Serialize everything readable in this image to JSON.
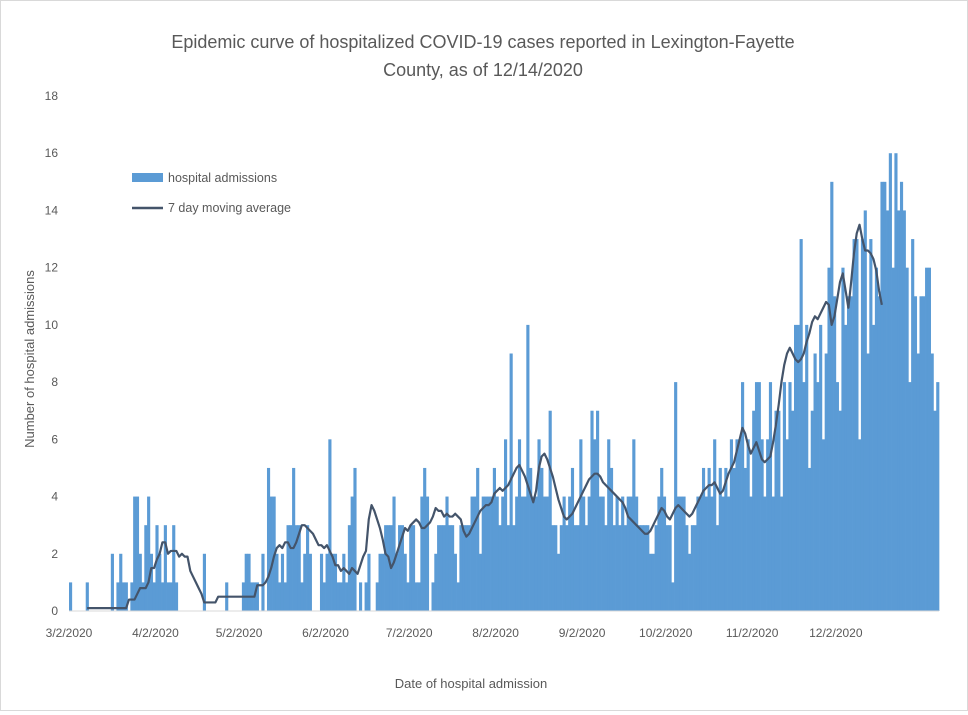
{
  "chart_data": {
    "type": "bar",
    "title_line1": "Epidemic curve of hospitalized COVID-19 cases reported in Lexington-Fayette",
    "title_line2": "County, as of 12/14/2020",
    "xlabel": "Date of hospital admission",
    "ylabel": "Number of hospital admissions",
    "ylim": [
      0,
      18
    ],
    "y_ticks": [
      "0",
      "2",
      "4",
      "6",
      "8",
      "10",
      "12",
      "14",
      "16",
      "18"
    ],
    "x_ticks": [
      {
        "label": "3/2/2020",
        "day": 0
      },
      {
        "label": "4/2/2020",
        "day": 31
      },
      {
        "label": "5/2/2020",
        "day": 61
      },
      {
        "label": "6/2/2020",
        "day": 92
      },
      {
        "label": "7/2/2020",
        "day": 122
      },
      {
        "label": "8/2/2020",
        "day": 153
      },
      {
        "label": "9/2/2020",
        "day": 184
      },
      {
        "label": "10/2/2020",
        "day": 214
      },
      {
        "label": "11/2/2020",
        "day": 245
      },
      {
        "label": "12/2/2020",
        "day": 275
      }
    ],
    "x_start": "3/2/2020",
    "x_end": "12/14/2020",
    "legend": {
      "placement": "top-left",
      "bar_label": "hospital admissions",
      "line_label": "7 day moving average"
    },
    "grid": false,
    "colors": {
      "bar": "#5b9bd5",
      "line": "#44546a"
    },
    "series": [
      {
        "name": "hospital admissions",
        "type": "bar",
        "values": [
          1,
          0,
          0,
          0,
          0,
          0,
          1,
          0,
          0,
          0,
          0,
          0,
          0,
          0,
          0,
          2,
          0,
          1,
          2,
          1,
          1,
          0,
          1,
          4,
          4,
          2,
          1,
          3,
          4,
          2,
          1,
          3,
          2,
          1,
          3,
          1,
          1,
          3,
          1,
          0,
          0,
          0,
          0,
          0,
          0,
          0,
          0,
          0,
          2,
          0,
          0,
          0,
          0,
          0,
          0,
          0,
          1,
          0,
          0,
          0,
          0,
          0,
          1,
          2,
          2,
          1,
          1,
          1,
          0,
          2,
          0,
          5,
          4,
          4,
          2,
          1,
          2,
          1,
          3,
          3,
          5,
          3,
          3,
          1,
          2,
          3,
          2,
          0,
          0,
          0,
          2,
          1,
          2,
          6,
          2,
          2,
          1,
          1,
          2,
          1,
          3,
          4,
          5,
          0,
          1,
          0,
          1,
          2,
          0,
          0,
          1,
          2,
          2,
          3,
          3,
          3,
          4,
          2,
          3,
          3,
          2,
          1,
          3,
          3,
          1,
          1,
          4,
          5,
          4,
          0,
          1,
          2,
          3,
          3,
          3,
          4,
          3,
          3,
          2,
          1,
          3,
          3,
          3,
          3,
          4,
          4,
          5,
          2,
          4,
          4,
          4,
          4,
          5,
          4,
          3,
          4,
          6,
          3,
          9,
          3,
          4,
          6,
          4,
          4,
          10,
          5,
          4,
          4,
          6,
          5,
          4,
          4,
          7,
          3,
          3,
          2,
          3,
          4,
          3,
          4,
          5,
          3,
          3,
          6,
          4,
          3,
          4,
          7,
          6,
          7,
          4,
          4,
          3,
          6,
          5,
          3,
          4,
          3,
          4,
          3,
          4,
          4,
          6,
          4,
          3,
          3,
          3,
          3,
          2,
          2,
          3,
          4,
          5,
          4,
          3,
          3,
          1,
          8,
          4,
          4,
          4,
          3,
          2,
          3,
          3,
          4,
          4,
          5,
          4,
          5,
          4,
          6,
          3,
          5,
          4,
          5,
          4,
          6,
          5,
          6,
          6,
          8,
          5,
          6,
          4,
          7,
          8,
          8,
          6,
          4,
          6,
          8,
          4,
          7,
          7,
          4,
          8,
          6,
          8,
          7,
          10,
          10,
          13,
          8,
          10,
          5,
          7,
          9,
          8,
          10,
          6,
          9,
          12,
          15,
          11,
          8,
          7,
          12,
          10,
          11,
          11,
          13,
          13,
          6,
          13,
          14,
          9,
          13,
          10,
          12,
          11,
          15,
          15,
          14,
          16,
          12,
          16,
          14,
          15,
          14,
          12,
          8,
          13,
          11,
          9,
          11,
          11,
          12,
          12,
          9,
          7,
          8
        ]
      },
      {
        "name": "7 day moving average",
        "type": "line",
        "values": [
          0.1,
          0.1,
          0.1,
          0.1,
          0.1,
          0.1,
          0.1,
          0.1,
          0.1,
          0.1,
          0.1,
          0.1,
          0.1,
          0.1,
          0.1,
          0.4,
          0.4,
          0.4,
          0.6,
          0.8,
          0.8,
          0.8,
          1.0,
          1.5,
          1.5,
          1.8,
          2.0,
          2.4,
          2.4,
          2.0,
          2.1,
          2.1,
          2.1,
          1.9,
          2.0,
          1.9,
          1.9,
          1.4,
          1.2,
          1.0,
          0.8,
          0.6,
          0.3,
          0.3,
          0.3,
          0.3,
          0.3,
          0.5,
          0.5,
          0.5,
          0.5,
          0.5,
          0.5,
          0.5,
          0.5,
          0.5,
          0.5,
          0.5,
          0.5,
          0.5,
          0.5,
          0.9,
          0.9,
          0.9,
          1.0,
          1.2,
          1.5,
          1.9,
          2.2,
          2.3,
          2.2,
          2.4,
          2.4,
          2.2,
          2.2,
          2.4,
          2.7,
          3.0,
          3.0,
          2.9,
          2.8,
          2.7,
          2.5,
          2.3,
          2.3,
          2.2,
          2.3,
          2.1,
          1.9,
          1.6,
          1.6,
          1.4,
          1.5,
          1.4,
          1.3,
          1.5,
          1.4,
          1.3,
          1.6,
          1.9,
          2.1,
          3.2,
          3.7,
          3.5,
          3.2,
          2.9,
          2.5,
          2.0,
          1.9,
          1.5,
          1.7,
          2.0,
          2.3,
          2.6,
          2.9,
          2.8,
          3.0,
          3.1,
          3.2,
          3.1,
          2.9,
          2.9,
          3.0,
          3.1,
          3.3,
          3.6,
          3.5,
          3.5,
          3.3,
          3.4,
          3.3,
          3.3,
          3.4,
          3.3,
          3.2,
          2.8,
          2.6,
          2.7,
          2.9,
          3.1,
          3.3,
          3.5,
          3.6,
          3.7,
          3.7,
          3.8,
          4.1,
          4.2,
          4.3,
          4.2,
          4.3,
          4.4,
          4.6,
          4.8,
          5.0,
          5.1,
          4.9,
          4.7,
          4.4,
          4.1,
          3.8,
          4.2,
          5.0,
          5.4,
          5.5,
          5.3,
          5.0,
          4.7,
          4.3,
          3.9,
          3.6,
          3.3,
          3.2,
          3.3,
          3.4,
          3.6,
          3.8,
          4.0,
          4.2,
          4.4,
          4.6,
          4.7,
          4.8,
          4.8,
          4.7,
          4.5,
          4.4,
          4.3,
          4.2,
          4.1,
          4.0,
          3.9,
          3.8,
          3.6,
          3.3,
          3.2,
          3.1,
          3.0,
          2.9,
          2.8,
          2.7,
          2.7,
          2.8,
          3.0,
          3.2,
          3.4,
          3.6,
          3.5,
          3.3,
          3.2,
          3.4,
          3.6,
          3.7,
          3.6,
          3.5,
          3.4,
          3.3,
          3.4,
          3.6,
          3.8,
          4.0,
          4.2,
          4.3,
          4.4,
          4.4,
          4.5,
          4.3,
          4.1,
          4.2,
          4.5,
          4.8,
          5.0,
          5.2,
          5.6,
          6.0,
          6.4,
          6.2,
          5.8,
          5.5,
          5.7,
          5.9,
          5.6,
          5.3,
          5.2,
          5.3,
          5.4,
          5.9,
          6.5,
          7.2,
          8.0,
          8.6,
          9.0,
          9.2,
          9.0,
          8.8,
          8.7,
          8.8,
          9.0,
          9.4,
          9.7,
          10.1,
          10.3,
          10.2,
          10.4,
          10.6,
          10.8,
          10.7,
          10.0,
          10.3,
          10.9,
          11.5,
          11.8,
          11.2,
          10.6,
          11.5,
          12.5,
          13.2,
          13.5,
          13.0,
          12.6,
          12.6,
          12.5,
          12.3,
          11.9,
          11.2,
          10.7
        ]
      }
    ]
  }
}
